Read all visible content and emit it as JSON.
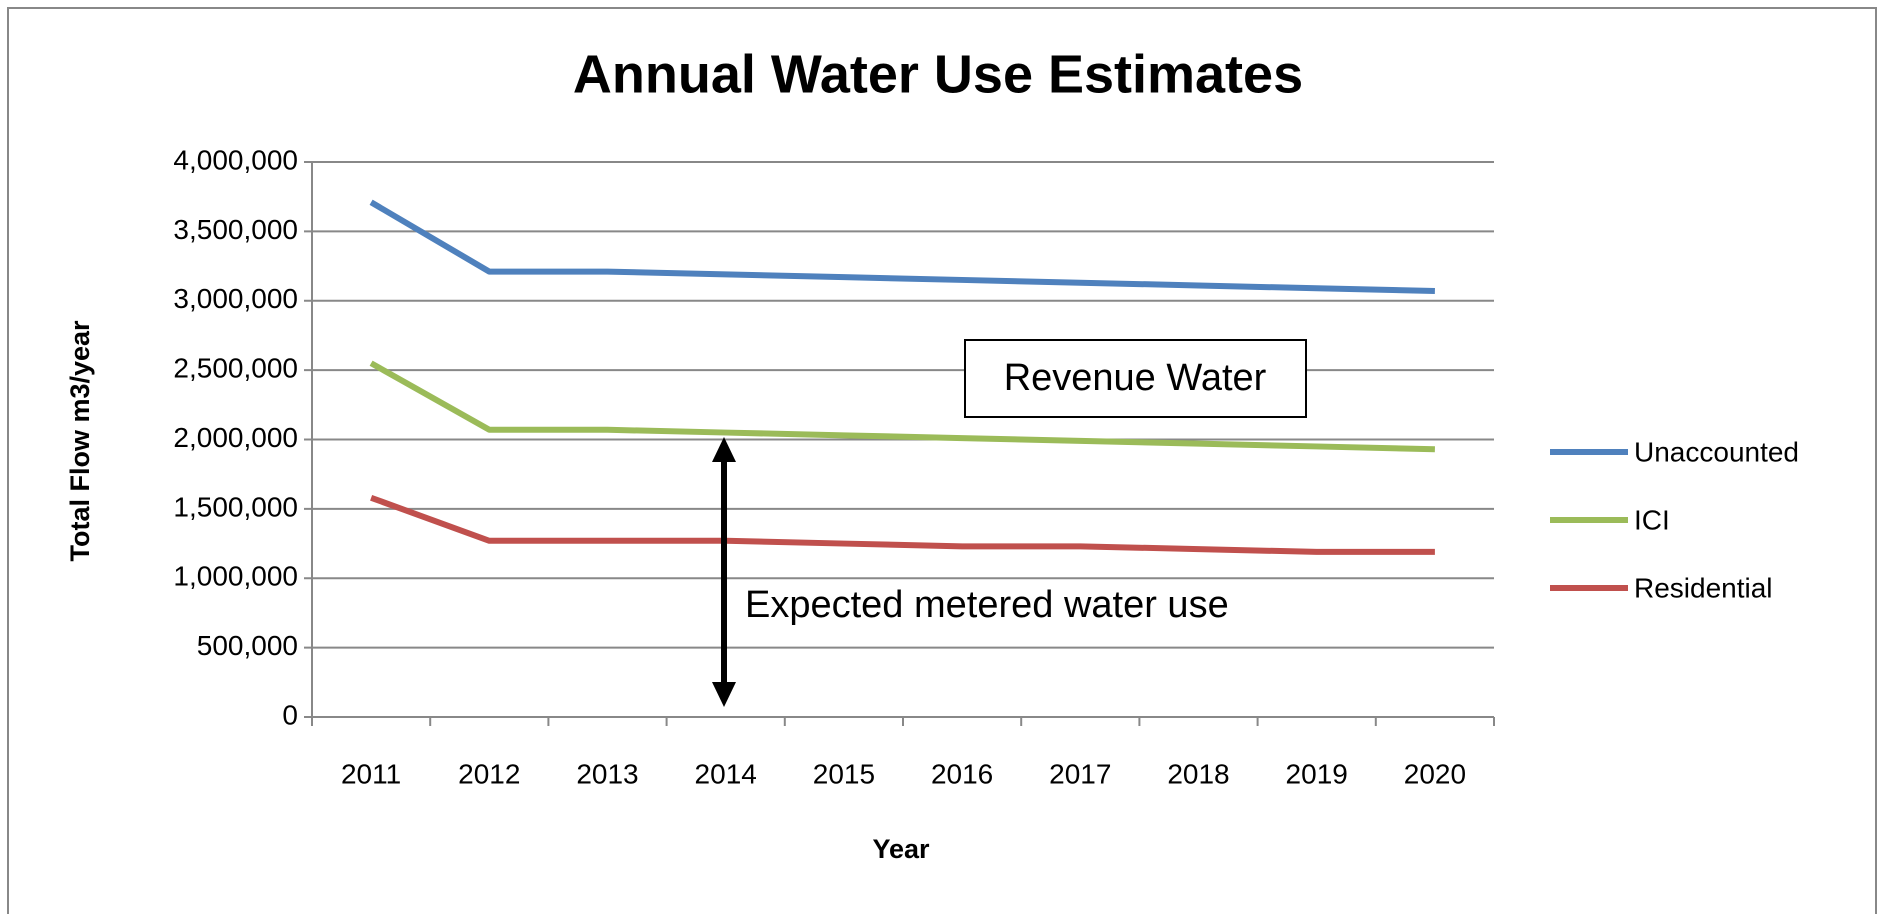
{
  "chart_data": {
    "type": "line",
    "title": "Annual Water Use Estimates",
    "x_label": "Year",
    "y_label": "Total Flow  m3/year",
    "categories": [
      "2011",
      "2012",
      "2013",
      "2014",
      "2015",
      "2016",
      "2017",
      "2018",
      "2019",
      "2020"
    ],
    "series": [
      {
        "name": "Unaccounted",
        "color": "#4f81bd",
        "values": [
          3710000,
          3210000,
          3210000,
          3190000,
          3170000,
          3150000,
          3130000,
          3110000,
          3090000,
          3070000
        ]
      },
      {
        "name": "ICI",
        "color": "#9bbb59",
        "values": [
          2550000,
          2070000,
          2070000,
          2050000,
          2030000,
          2010000,
          1990000,
          1970000,
          1950000,
          1930000
        ]
      },
      {
        "name": "Residential",
        "color": "#c0504d",
        "values": [
          1580000,
          1270000,
          1270000,
          1270000,
          1250000,
          1230000,
          1230000,
          1210000,
          1190000,
          1190000
        ]
      }
    ],
    "ylim": [
      0,
      4000000
    ],
    "yticks": [
      0,
      {
        "value": 500000,
        "label": "500,000"
      },
      {
        "value": 1000000,
        "label": "1,000,000"
      },
      {
        "value": 1500000,
        "label": "1,500,000"
      },
      {
        "value": 2000000,
        "label": "2,000,000"
      },
      {
        "value": 2500000,
        "label": "2,500,000"
      },
      {
        "value": 3000000,
        "label": "3,000,000"
      },
      {
        "value": 3500000,
        "label": "3,500,000"
      },
      {
        "value": 4000000,
        "label": "4,000,000"
      }
    ],
    "grid": true,
    "legend": "right",
    "annotations": [
      "Revenue Water",
      "Expected metered water use"
    ]
  }
}
